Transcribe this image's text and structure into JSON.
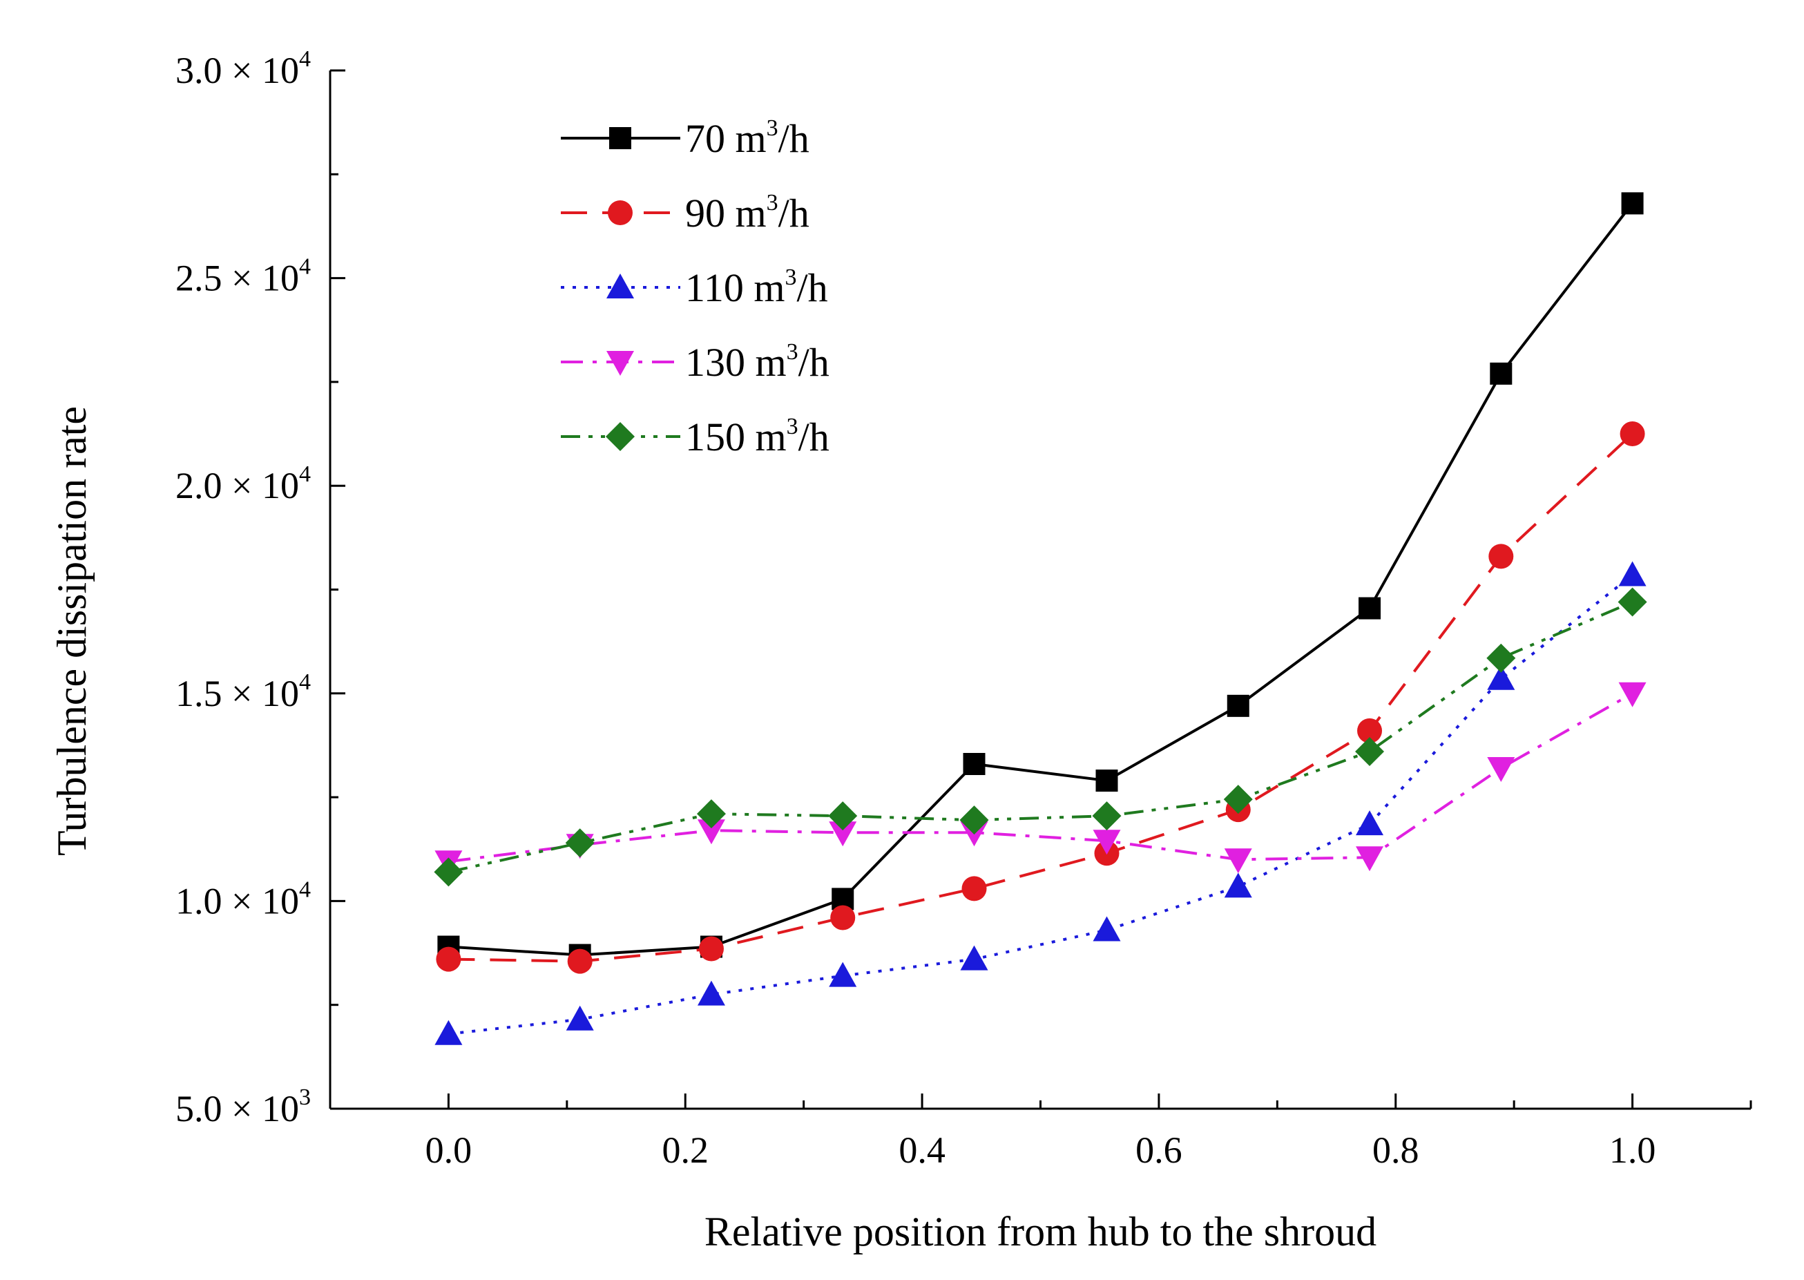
{
  "chart_data": {
    "type": "line",
    "title": "",
    "xlabel": "Relative position from hub to the shroud",
    "ylabel": "Turbulence dissipation rate",
    "xlim": [
      -0.1,
      1.1
    ],
    "ylim": [
      5000,
      30000
    ],
    "x_ticks": [
      0.0,
      0.2,
      0.4,
      0.6,
      0.8,
      1.0
    ],
    "x_tick_labels": [
      "0.0",
      "0.2",
      "0.4",
      "0.6",
      "0.8",
      "1.0"
    ],
    "y_ticks": [
      5000,
      10000,
      15000,
      20000,
      25000,
      30000
    ],
    "y_tick_labels": [
      {
        "mantissa": "5.0 × 10",
        "exp": "3"
      },
      {
        "mantissa": "1.0 × 10",
        "exp": "4"
      },
      {
        "mantissa": "1.5 × 10",
        "exp": "4"
      },
      {
        "mantissa": "2.0 × 10",
        "exp": "4"
      },
      {
        "mantissa": "2.5 × 10",
        "exp": "4"
      },
      {
        "mantissa": "3.0 × 10",
        "exp": "4"
      }
    ],
    "grid": false,
    "legend_position": "top-left",
    "x": [
      0.0,
      0.111,
      0.222,
      0.333,
      0.444,
      0.556,
      0.667,
      0.778,
      0.889,
      1.0
    ],
    "series": [
      {
        "name": "70 m3/h",
        "label_main": "70 m",
        "label_sup": "3",
        "label_end": "/h",
        "color": "#000000",
        "dash": "solid",
        "marker": "square",
        "values": [
          8900,
          8700,
          8900,
          10050,
          13300,
          12900,
          14700,
          17050,
          22700,
          26800
        ]
      },
      {
        "name": "90 m3/h",
        "label_main": "90 m",
        "label_sup": "3",
        "label_end": "/h",
        "color": "#e0191f",
        "dash": "dash",
        "marker": "circle",
        "values": [
          8600,
          8550,
          8850,
          9600,
          10300,
          11150,
          12200,
          14100,
          18300,
          21250
        ]
      },
      {
        "name": "110 m3/h",
        "label_main": "110 m",
        "label_sup": "3",
        "label_end": "/h",
        "color": "#1a1adb",
        "dash": "dot",
        "marker": "triangle-up",
        "values": [
          6800,
          7150,
          7750,
          8200,
          8600,
          9300,
          10350,
          11850,
          15350,
          17850
        ]
      },
      {
        "name": "130 m3/h",
        "label_main": "130 m",
        "label_sup": "3",
        "label_end": "/h",
        "color": "#e020e0",
        "dash": "dashdot",
        "marker": "triangle-down",
        "values": [
          10950,
          11350,
          11700,
          11650,
          11650,
          11450,
          11000,
          11050,
          13200,
          15000
        ]
      },
      {
        "name": "150 m3/h",
        "label_main": "150 m",
        "label_sup": "3",
        "label_end": "/h",
        "color": "#1f7a1f",
        "dash": "dashdotdot",
        "marker": "diamond",
        "values": [
          10700,
          11400,
          12100,
          12050,
          11950,
          12050,
          12450,
          13600,
          15850,
          17200
        ]
      }
    ]
  }
}
